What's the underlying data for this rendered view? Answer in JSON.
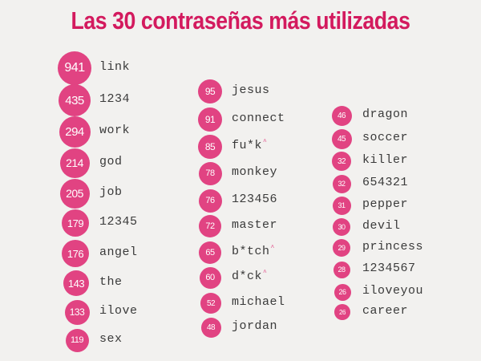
{
  "title": "Las 30 contraseñas más utilizadas",
  "accent_color": "#d31a5e",
  "badge_color": "#e14382",
  "columns": [
    {
      "items": [
        {
          "count": "941",
          "word": "link"
        },
        {
          "count": "435",
          "word": "1234"
        },
        {
          "count": "294",
          "word": "work"
        },
        {
          "count": "214",
          "word": "god"
        },
        {
          "count": "205",
          "word": "job"
        },
        {
          "count": "179",
          "word": "12345"
        },
        {
          "count": "176",
          "word": "angel"
        },
        {
          "count": "143",
          "word": "the"
        },
        {
          "count": "133",
          "word": "ilove"
        },
        {
          "count": "119",
          "word": "sex"
        }
      ]
    },
    {
      "items": [
        {
          "count": "95",
          "word": "jesus"
        },
        {
          "count": "91",
          "word": "connect"
        },
        {
          "count": "85",
          "word": "fu*k",
          "mark": "^"
        },
        {
          "count": "78",
          "word": "monkey"
        },
        {
          "count": "76",
          "word": "123456"
        },
        {
          "count": "72",
          "word": "master"
        },
        {
          "count": "65",
          "word": "b*tch",
          "mark": "^"
        },
        {
          "count": "60",
          "word": "d*ck",
          "mark": "^"
        },
        {
          "count": "52",
          "word": "michael"
        },
        {
          "count": "48",
          "word": "jordan"
        }
      ]
    },
    {
      "items": [
        {
          "count": "46",
          "word": "dragon"
        },
        {
          "count": "45",
          "word": "soccer"
        },
        {
          "count": "32",
          "word": "killer"
        },
        {
          "count": "32",
          "word": "654321"
        },
        {
          "count": "31",
          "word": "pepper"
        },
        {
          "count": "30",
          "word": "devil"
        },
        {
          "count": "29",
          "word": "princess"
        },
        {
          "count": "28",
          "word": "1234567"
        },
        {
          "count": "26",
          "word": "iloveyou"
        },
        {
          "count": "26",
          "word": "career"
        }
      ]
    }
  ]
}
